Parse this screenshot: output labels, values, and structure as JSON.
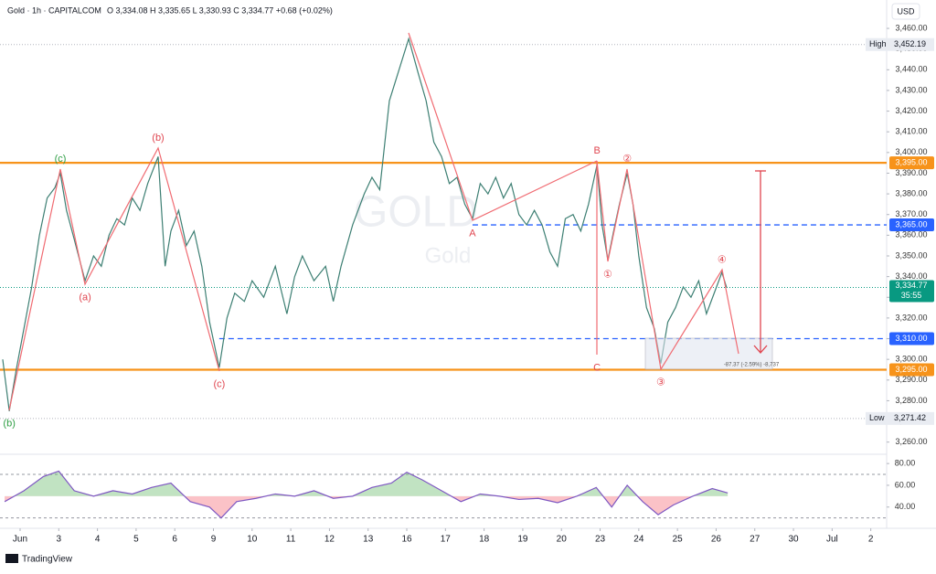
{
  "brand": "TradingView",
  "chart_data": [
    {
      "type": "line",
      "title": "Gold · 1h · CAPITALCOM",
      "subtitle": "O 3,334.08  H 3,335.65  L 3,330.93  C 3,334.77  +0.68 (+0.02%)",
      "watermark": "GOLD",
      "watermark_sub": "Gold",
      "currency": "USD",
      "color": "#3d7f73",
      "x": [
        -0.45,
        -0.28,
        -0.1,
        0.1,
        0.3,
        0.5,
        0.7,
        0.9,
        1.04,
        1.2,
        1.4,
        1.68,
        1.9,
        2.1,
        2.3,
        2.5,
        2.7,
        2.9,
        3.1,
        3.3,
        3.57,
        3.75,
        3.9,
        4.1,
        4.3,
        4.5,
        4.7,
        4.9,
        5.15,
        5.35,
        5.55,
        5.8,
        6.0,
        6.3,
        6.6,
        6.9,
        7.1,
        7.3,
        7.6,
        7.9,
        8.1,
        8.3,
        8.6,
        8.9,
        9.1,
        9.3,
        9.55,
        9.8,
        10.05,
        10.3,
        10.5,
        10.7,
        10.9,
        11.1,
        11.3,
        11.5,
        11.7,
        11.9,
        12.1,
        12.3,
        12.5,
        12.7,
        12.9,
        13.1,
        13.3,
        13.5,
        13.7,
        13.9,
        14.1,
        14.3,
        14.5,
        14.7,
        14.92,
        15.05,
        15.2,
        15.35,
        15.5,
        15.7,
        15.85,
        16.0,
        16.2,
        16.4,
        16.57,
        16.75,
        16.95,
        17.15,
        17.35,
        17.55,
        17.75,
        17.95,
        18.15,
        18.27
      ],
      "values": [
        3300,
        3275,
        3295,
        3315,
        3335,
        3360,
        3378,
        3383,
        3390,
        3372,
        3358,
        3338,
        3350,
        3345,
        3360,
        3368,
        3365,
        3378,
        3372,
        3385,
        3398,
        3345,
        3362,
        3372,
        3355,
        3362,
        3345,
        3318,
        3296,
        3320,
        3332,
        3328,
        3338,
        3330,
        3345,
        3322,
        3340,
        3350,
        3338,
        3345,
        3328,
        3345,
        3365,
        3380,
        3388,
        3382,
        3425,
        3440,
        3455,
        3438,
        3425,
        3405,
        3398,
        3385,
        3388,
        3375,
        3368,
        3385,
        3380,
        3388,
        3378,
        3385,
        3370,
        3365,
        3372,
        3365,
        3352,
        3345,
        3368,
        3370,
        3362,
        3375,
        3394,
        3365,
        3348,
        3362,
        3375,
        3390,
        3375,
        3350,
        3325,
        3315,
        3298,
        3318,
        3325,
        3335,
        3330,
        3338,
        3322,
        3332,
        3342,
        3334.77
      ],
      "last_label": "3,334.77",
      "countdown": "35:55",
      "xlim": [
        -0.52,
        22.41
      ],
      "xticks": [
        {
          "value": 0,
          "label": "Jun"
        },
        {
          "value": 1,
          "label": "3"
        },
        {
          "value": 2,
          "label": "4"
        },
        {
          "value": 3,
          "label": "5"
        },
        {
          "value": 4,
          "label": "6"
        },
        {
          "value": 5,
          "label": "9"
        },
        {
          "value": 6,
          "label": "10"
        },
        {
          "value": 7,
          "label": "11"
        },
        {
          "value": 8,
          "label": "12"
        },
        {
          "value": 9,
          "label": "13"
        },
        {
          "value": 10,
          "label": "16"
        },
        {
          "value": 11,
          "label": "17"
        },
        {
          "value": 12,
          "label": "18"
        },
        {
          "value": 13,
          "label": "19"
        },
        {
          "value": 14,
          "label": "20"
        },
        {
          "value": 15,
          "label": "23"
        },
        {
          "value": 16,
          "label": "24"
        },
        {
          "value": 17,
          "label": "25"
        },
        {
          "value": 18,
          "label": "26"
        },
        {
          "value": 19,
          "label": "27"
        },
        {
          "value": 20,
          "label": "30"
        },
        {
          "value": 21,
          "label": "Jul"
        },
        {
          "value": 22,
          "label": "2"
        }
      ],
      "ylim": [
        3255,
        3464
      ],
      "yticks": [
        {
          "value": 3260,
          "label": "3,260.00"
        },
        {
          "value": 3270,
          "label": "3,270.00"
        },
        {
          "value": 3280,
          "label": "3,280.00"
        },
        {
          "value": 3290,
          "label": "3,290.00"
        },
        {
          "value": 3300,
          "label": "3,300.00"
        },
        {
          "value": 3310,
          "label": "3,310.00"
        },
        {
          "value": 3320,
          "label": "3,320.00"
        },
        {
          "value": 3330,
          "label": "3,330.00"
        },
        {
          "value": 3340,
          "label": "3,340.00"
        },
        {
          "value": 3350,
          "label": "3,350.00"
        },
        {
          "value": 3360,
          "label": "3,360.00"
        },
        {
          "value": 3370,
          "label": "3,370.00"
        },
        {
          "value": 3380,
          "label": "3,380.00"
        },
        {
          "value": 3390,
          "label": "3,390.00"
        },
        {
          "value": 3400,
          "label": "3,400.00"
        },
        {
          "value": 3410,
          "label": "3,410.00"
        },
        {
          "value": 3420,
          "label": "3,420.00"
        },
        {
          "value": 3430,
          "label": "3,430.00"
        },
        {
          "value": 3440,
          "label": "3,440.00"
        },
        {
          "value": 3450,
          "label": "3,450.00"
        },
        {
          "value": 3460,
          "label": "3,460.00"
        }
      ],
      "high": {
        "label": "High",
        "value": 3452.19,
        "value_label": "3,452.19"
      },
      "low": {
        "label": "Low",
        "value": 3271.42,
        "value_label": "3,271.42"
      },
      "levels": [
        {
          "value": 3395,
          "label": "3,395.00",
          "color": "#f7931a",
          "dashed": false,
          "start": -0.52
        },
        {
          "value": 3365,
          "label": "3,365.00",
          "color": "#2962ff",
          "dashed": true,
          "start": 11.7
        },
        {
          "value": 3310,
          "label": "3,310.00",
          "color": "#2962ff",
          "dashed": true,
          "start": 5.15
        },
        {
          "value": 3295,
          "label": "3,295.00",
          "color": "#f7931a",
          "dashed": false,
          "start": -0.52
        }
      ],
      "waves": [
        {
          "label": "(b)",
          "x": -0.28,
          "y": 3275,
          "color": "#2e9e44",
          "place": "below"
        },
        {
          "label": "(c)",
          "x": 1.04,
          "y": 3392,
          "color": "#2e9e44",
          "place": "above"
        },
        {
          "label": "(a)",
          "x": 1.68,
          "y": 3336,
          "color": "#e0454f",
          "place": "below"
        },
        {
          "label": "(b)",
          "x": 3.57,
          "y": 3402,
          "color": "#e0454f",
          "place": "above"
        },
        {
          "label": "(c)",
          "x": 5.15,
          "y": 3294,
          "color": "#e0454f",
          "place": "below"
        },
        {
          "label": "A",
          "x": 11.7,
          "y": 3367,
          "color": "#e0454f",
          "place": "below"
        },
        {
          "label": "B",
          "x": 14.92,
          "y": 3396,
          "color": "#e0454f",
          "place": "above"
        },
        {
          "label": "C",
          "x": 14.92,
          "y": 3302,
          "color": "#e0454f",
          "place": "below"
        },
        {
          "label": "①",
          "x": 15.2,
          "y": 3347,
          "color": "#e0454f",
          "place": "below"
        },
        {
          "label": "②",
          "x": 15.7,
          "y": 3392,
          "color": "#e0454f",
          "place": "above"
        },
        {
          "label": "③",
          "x": 16.57,
          "y": 3295,
          "color": "#e0454f",
          "place": "below"
        },
        {
          "label": "④",
          "x": 18.15,
          "y": 3343,
          "color": "#e0454f",
          "place": "above"
        }
      ],
      "measure_label": "-87.37 (-2.59%) -8,737"
    },
    {
      "type": "line",
      "color": "#7e57c2",
      "x": [
        -0.4,
        0.1,
        0.6,
        1.0,
        1.4,
        1.9,
        2.4,
        2.9,
        3.4,
        3.9,
        4.4,
        4.9,
        5.2,
        5.6,
        6.1,
        6.6,
        7.1,
        7.6,
        8.1,
        8.6,
        9.1,
        9.6,
        10.0,
        10.4,
        10.9,
        11.4,
        11.9,
        12.4,
        12.9,
        13.4,
        13.9,
        14.4,
        14.9,
        15.3,
        15.7,
        16.1,
        16.5,
        16.9,
        17.4,
        17.9,
        18.3
      ],
      "values": [
        45,
        55,
        68,
        73,
        55,
        50,
        55,
        52,
        58,
        62,
        45,
        40,
        30,
        45,
        48,
        52,
        50,
        55,
        48,
        50,
        58,
        62,
        72,
        65,
        55,
        45,
        52,
        50,
        47,
        48,
        44,
        50,
        58,
        40,
        60,
        45,
        33,
        42,
        50,
        57,
        53
      ],
      "ylim": [
        23,
        86
      ],
      "yticks": [
        {
          "value": 40,
          "label": "40.00"
        },
        {
          "value": 60,
          "label": "60.00"
        },
        {
          "value": 80,
          "label": "80.00"
        }
      ],
      "bands": [
        70,
        30
      ],
      "midline": 50
    }
  ]
}
